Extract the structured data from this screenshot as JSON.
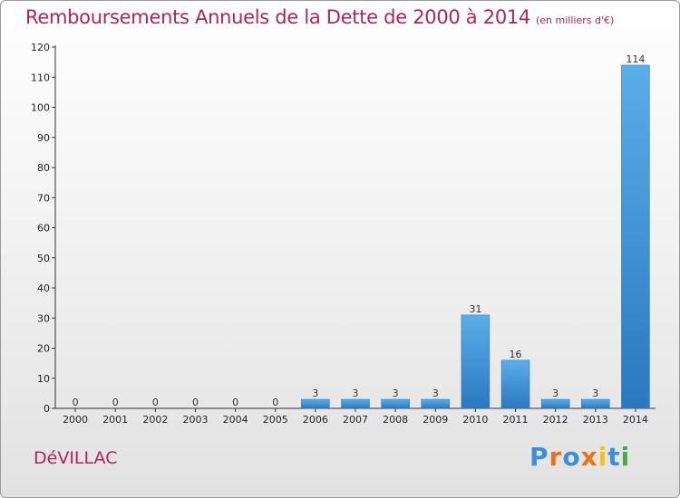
{
  "chart_data": {
    "type": "bar",
    "title": "Remboursements Annuels de la Dette de 2000 à 2014",
    "unit_note": "(en milliers d'€)",
    "categories": [
      "2000",
      "2001",
      "2002",
      "2003",
      "2004",
      "2005",
      "2006",
      "2007",
      "2008",
      "2009",
      "2010",
      "2011",
      "2012",
      "2013",
      "2014"
    ],
    "values": [
      0,
      0,
      0,
      0,
      0,
      0,
      3,
      3,
      3,
      3,
      31,
      16,
      3,
      3,
      114
    ],
    "ylim": [
      0,
      120
    ],
    "yticks": [
      0,
      10,
      20,
      30,
      40,
      50,
      60,
      70,
      80,
      90,
      100,
      110,
      120
    ],
    "grid": false,
    "bar_color": "#3a8fd6",
    "title_color": "#b0245a"
  },
  "footer": {
    "commune": "DéVILLAC",
    "logo_text": "Proxiti"
  }
}
